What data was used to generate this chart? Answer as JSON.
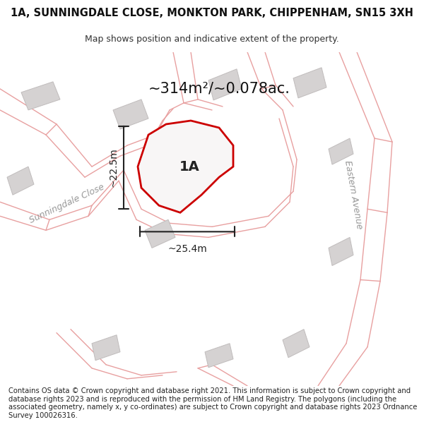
{
  "title": "1A, SUNNINGDALE CLOSE, MONKTON PARK, CHIPPENHAM, SN15 3XH",
  "subtitle": "Map shows position and indicative extent of the property.",
  "area_text": "~314m²/~0.078ac.",
  "width_label": "~25.4m",
  "height_label": "~22.5m",
  "plot_label": "1A",
  "street_label_1": "Sunningdale Close",
  "street_label_2": "Eastern Avenue",
  "footer": "Contains OS data © Crown copyright and database right 2021. This information is subject to Crown copyright and database rights 2023 and is reproduced with the permission of HM Land Registry. The polygons (including the associated geometry, namely x, y co-ordinates) are subject to Crown copyright and database rights 2023 Ordnance Survey 100026316.",
  "map_bg": "#eeecec",
  "plot_fill": "#f8f6f6",
  "plot_edge": "#cc0000",
  "road_color": "#e8a0a0",
  "road_lw": 1.0,
  "building_color": "#d5d2d2",
  "building_edge": "#c0bcbc",
  "dim_line_color": "#222222",
  "title_fontsize": 10.5,
  "subtitle_fontsize": 9,
  "area_fontsize": 15,
  "label_fontsize": 14,
  "street_fontsize": 9,
  "footer_fontsize": 7.2
}
